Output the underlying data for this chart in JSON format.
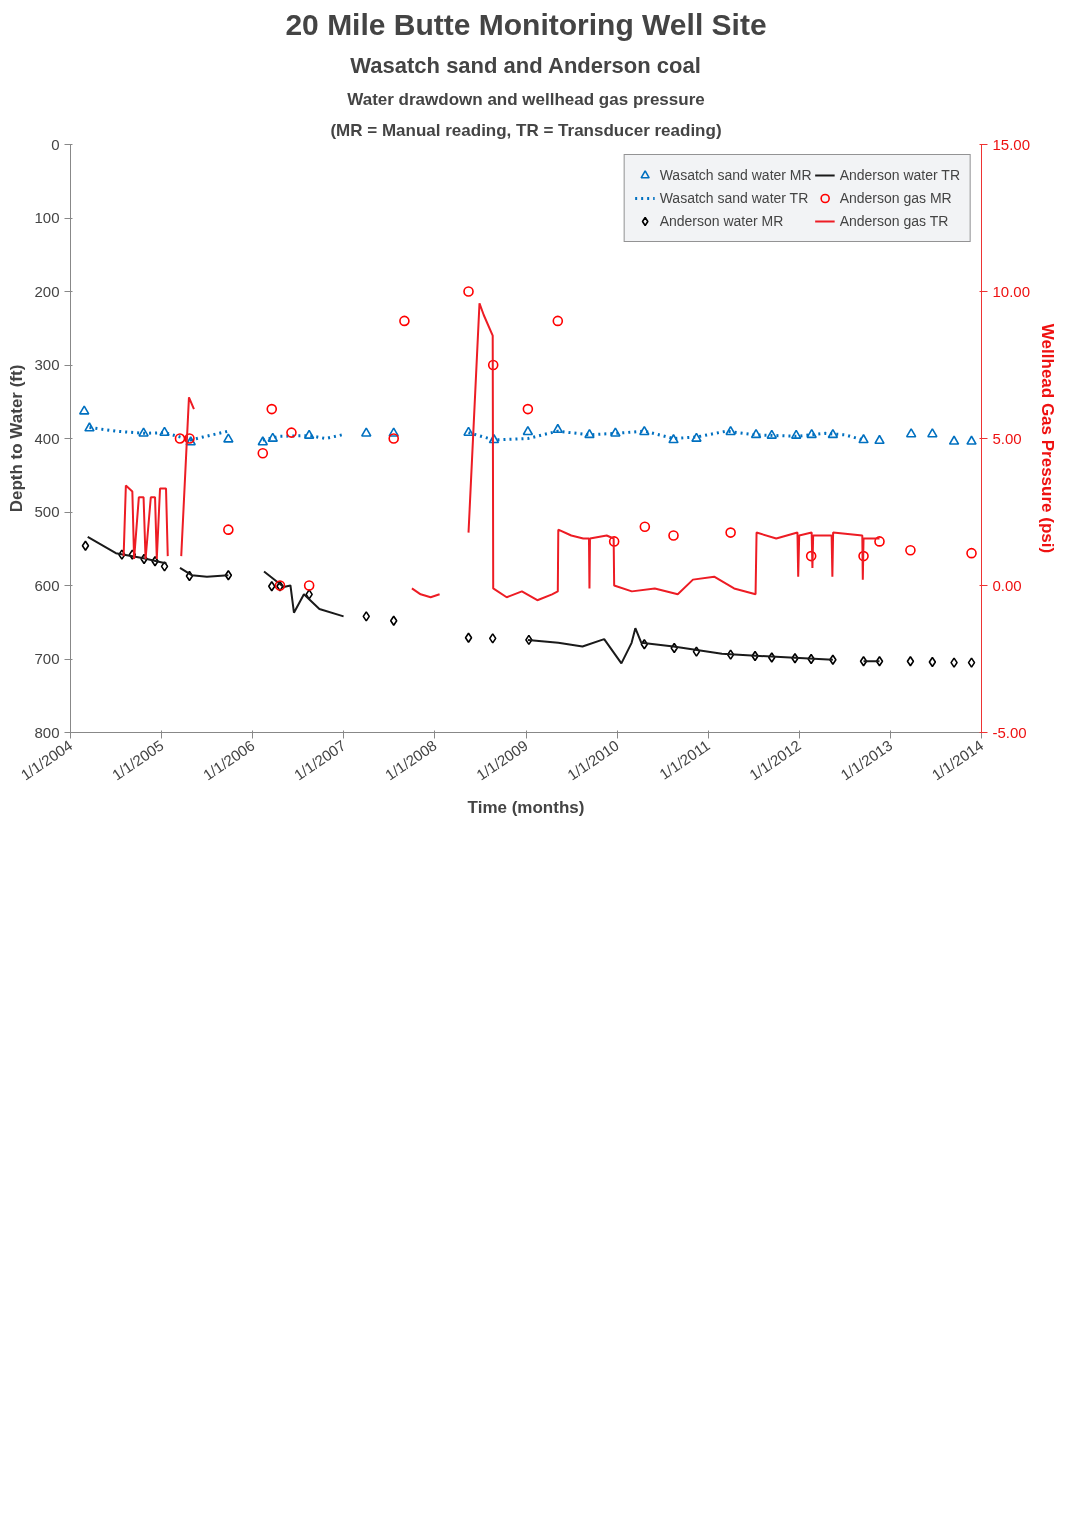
{
  "chart_data": {
    "type": "line",
    "title": "20 Mile Butte Monitoring Well Site",
    "subtitle": "Wasatch sand and Anderson coal",
    "annotations": [
      "Water drawdown and wellhead gas pressure",
      "(MR = Manual reading, TR = Transducer reading)"
    ],
    "xlabel": "Time (months)",
    "ylabel": "Depth to Water (ft)",
    "y2label": "Wellhead Gas Pressure (psi)",
    "xlim": [
      "2004-01-01",
      "2014-01-01"
    ],
    "xticks": [
      {
        "value": "2004-01-01",
        "label": "1/1/2004"
      },
      {
        "value": "2005-01-01",
        "label": "1/1/2005"
      },
      {
        "value": "2006-01-01",
        "label": "1/1/2006"
      },
      {
        "value": "2007-01-01",
        "label": "1/1/2007"
      },
      {
        "value": "2008-01-01",
        "label": "1/1/2008"
      },
      {
        "value": "2009-01-01",
        "label": "1/1/2009"
      },
      {
        "value": "2010-01-01",
        "label": "1/1/2010"
      },
      {
        "value": "2011-01-01",
        "label": "1/1/2011"
      },
      {
        "value": "2012-01-01",
        "label": "1/1/2012"
      },
      {
        "value": "2013-01-01",
        "label": "1/1/2013"
      },
      {
        "value": "2014-01-01",
        "label": "1/1/2014"
      }
    ],
    "ylim": [
      800,
      0
    ],
    "yticks": [
      0,
      100,
      200,
      300,
      400,
      500,
      600,
      700,
      800
    ],
    "y2lim": [
      -5,
      15
    ],
    "y2ticks": [
      {
        "value": -5,
        "label": "-5.00"
      },
      {
        "value": 0,
        "label": "0.00"
      },
      {
        "value": 5,
        "label": "5.00"
      },
      {
        "value": 10,
        "label": "10.00"
      },
      {
        "value": 15,
        "label": "15.00"
      }
    ],
    "legend": "top right",
    "series": [
      {
        "name": "Wasatch sand water MR",
        "type": "scatter",
        "marker": "triangle",
        "color": "#0070c0",
        "x": [
          "2004-02-25",
          "2004-03-17",
          "2004-10-20",
          "2005-01-12",
          "2005-04-27",
          "2005-09-25",
          "2006-02-10",
          "2006-03-22",
          "2006-08-15",
          "2007-04-01",
          "2007-07-20",
          "2008-05-15",
          "2008-08-25",
          "2009-01-08",
          "2009-05-08",
          "2009-09-12",
          "2009-12-25",
          "2010-04-20",
          "2010-08-15",
          "2010-11-15",
          "2011-04-01",
          "2011-07-12",
          "2011-09-13",
          "2011-12-20",
          "2012-02-20",
          "2012-05-15",
          "2012-09-15",
          "2012-11-18",
          "2013-03-25",
          "2013-06-18",
          "2013-09-13",
          "2013-11-22"
        ],
        "values": [
          363,
          386,
          393,
          392,
          405,
          401,
          405,
          400,
          396,
          393,
          393,
          392,
          402,
          391,
          388,
          395,
          393,
          391,
          402,
          400,
          391,
          395,
          396,
          396,
          395,
          395,
          402,
          403,
          394,
          394,
          404,
          404
        ]
      },
      {
        "name": "Wasatch sand water TR",
        "line_style": "dotted",
        "marker": "none",
        "color": "#0070c0",
        "x": [
          "2004-03-17",
          "2004-07-01",
          "2004-10-20",
          "2005-01-12",
          "2005-04-27",
          "2005-06-15",
          "2005-09-25",
          "2005-12-01",
          "2006-02-10",
          "2006-04-20",
          "2006-08-15",
          "2006-10-20",
          "2006-12-25",
          "2007-07-01",
          "2008-05-15",
          "2008-08-25",
          "2009-01-08",
          "2009-05-08",
          "2009-09-12",
          "2009-12-25",
          "2010-04-20",
          "2010-08-15",
          "2010-11-15",
          "2011-03-15",
          "2011-07-12",
          "2011-12-20",
          "2012-04-15",
          "2012-07-01",
          "2012-09-15"
        ],
        "values": [
          385,
          390,
          393,
          392,
          402,
          398,
          390,
          null,
          402,
          397,
          396,
          400,
          395,
          null,
          392,
          402,
          400,
          390,
          395,
          393,
          390,
          400,
          398,
          390,
          395,
          397,
          393,
          395,
          402
        ]
      },
      {
        "name": "Anderson water MR",
        "type": "scatter",
        "marker": "diamond",
        "color": "#000000",
        "x": [
          "2004-03-01",
          "2004-07-25",
          "2004-09-05",
          "2004-10-22",
          "2004-12-05",
          "2005-01-12",
          "2005-04-22",
          "2005-09-25",
          "2006-03-18",
          "2006-04-20",
          "2006-08-15",
          "2007-04-01",
          "2007-07-20",
          "2008-05-15",
          "2008-08-20",
          "2009-01-12",
          "2010-04-20",
          "2010-08-18",
          "2010-11-15",
          "2011-04-01",
          "2011-07-08",
          "2011-09-13",
          "2011-12-15",
          "2012-02-18",
          "2012-05-15",
          "2012-09-15",
          "2012-11-18",
          "2013-03-22",
          "2013-06-18",
          "2013-09-13",
          "2013-11-22"
        ],
        "values": [
          546,
          558,
          558,
          564,
          567,
          574,
          587,
          586,
          601,
          601,
          612,
          642,
          648,
          671,
          672,
          674,
          680,
          685,
          690,
          694,
          696,
          698,
          699,
          700,
          701,
          703,
          703,
          703,
          704,
          705,
          705
        ]
      },
      {
        "name": "Anderson water TR",
        "line_style": "solid",
        "marker": "none",
        "color": "#1a1a1a",
        "x": [
          "2004-03-10",
          "2004-07-01",
          "2004-10-20",
          "2005-01-20",
          "2005-02-20",
          "2005-03-15",
          "2005-05-01",
          "2005-07-01",
          "2005-09-25",
          "2006-01-01",
          "2006-02-15",
          "2006-05-05",
          "2006-06-01",
          "2006-06-15",
          "2006-07-25",
          "2006-09-25",
          "2006-12-31",
          "2008-01-01",
          "2009-01-08",
          "2009-05-10",
          "2009-08-15",
          "2009-11-10",
          "2010-01-18",
          "2010-02-28",
          "2010-03-15",
          "2010-04-08",
          "2010-08-15",
          "2011-02-25",
          "2011-11-25",
          "2012-05-15",
          "2012-07-15",
          "2012-09-15",
          "2012-11-18"
        ],
        "values": [
          534,
          556,
          563,
          570,
          null,
          576,
          586,
          588,
          586,
          null,
          581,
          602,
          600,
          637,
          612,
          632,
          642,
          null,
          674,
          678,
          683,
          673,
          706,
          678,
          658,
          678,
          683,
          693,
          698,
          701,
          null,
          703,
          703
        ]
      },
      {
        "name": "Anderson gas MR",
        "type": "scatter",
        "marker": "circle",
        "axis": "y2",
        "color": "#ff0000",
        "x": [
          "2005-03-15",
          "2005-04-22",
          "2005-09-25",
          "2006-02-10",
          "2006-03-18",
          "2006-04-20",
          "2006-06-05",
          "2006-08-15",
          "2007-07-20",
          "2007-09-01",
          "2008-05-15",
          "2008-08-22",
          "2009-01-08",
          "2009-05-08",
          "2009-12-20",
          "2010-04-22",
          "2010-08-15",
          "2011-04-01",
          "2012-02-18",
          "2012-09-15",
          "2012-11-18",
          "2013-03-22",
          "2013-11-22"
        ],
        "values": [
          5.0,
          5.0,
          1.9,
          4.5,
          6.0,
          0.0,
          5.2,
          0.0,
          5.0,
          9.0,
          10.0,
          7.5,
          6.0,
          9.0,
          1.5,
          2.0,
          1.7,
          1.8,
          1.0,
          1.0,
          1.5,
          1.2,
          1.1
        ]
      },
      {
        "name": "Anderson gas TR",
        "line_style": "solid",
        "marker": "none",
        "axis": "y2",
        "color": "#ed1c24",
        "x": [
          "2004-08-01",
          "2004-08-10",
          "2004-09-05",
          "2004-09-12",
          "2004-10-01",
          "2004-10-20",
          "2004-10-28",
          "2004-11-18",
          "2004-12-05",
          "2004-12-12",
          "2004-12-25",
          "2005-01-18",
          "2005-01-25",
          "2005-02-15",
          "2005-03-20",
          "2005-04-20",
          "2005-05-10",
          "2005-07-01",
          "2007-10-01",
          "2007-11-05",
          "2007-12-15",
          "2008-01-20",
          "2008-03-01",
          "2008-05-15",
          "2008-06-28",
          "2008-07-15",
          "2008-08-20",
          "2008-08-22",
          "2008-10-15",
          "2008-12-15",
          "2009-02-15",
          "2009-04-15",
          "2009-05-08",
          "2009-05-10",
          "2009-07-01",
          "2009-08-18",
          "2009-09-10",
          "2009-09-12",
          "2009-09-14",
          "2009-11-20",
          "2009-12-18",
          "2009-12-20",
          "2010-03-01",
          "2010-06-01",
          "2010-09-01",
          "2010-11-01",
          "2011-01-25",
          "2011-04-15",
          "2011-07-10",
          "2011-07-14",
          "2011-10-01",
          "2011-12-25",
          "2011-12-28",
          "2012-01-01",
          "2012-02-20",
          "2012-02-23",
          "2012-02-26",
          "2012-05-10",
          "2012-05-13",
          "2012-05-16",
          "2012-09-10",
          "2012-09-12",
          "2012-09-15",
          "2012-11-18"
        ],
        "values": [
          1.0,
          3.4,
          3.2,
          0.9,
          3.0,
          3.0,
          0.9,
          3.0,
          3.0,
          0.9,
          3.3,
          3.3,
          1.0,
          null,
          1.0,
          6.4,
          6.0,
          null,
          -0.1,
          -0.3,
          -0.4,
          -0.3,
          null,
          1.8,
          9.6,
          9.2,
          8.5,
          -0.1,
          -0.4,
          -0.2,
          -0.5,
          -0.3,
          -0.2,
          1.9,
          1.7,
          1.6,
          1.6,
          -0.1,
          1.6,
          1.7,
          1.6,
          0.0,
          -0.2,
          -0.1,
          -0.3,
          0.2,
          0.3,
          -0.1,
          -0.3,
          1.8,
          1.6,
          1.8,
          0.3,
          1.7,
          1.8,
          0.6,
          1.7,
          1.7,
          0.3,
          1.8,
          1.7,
          0.2,
          1.6,
          1.6
        ]
      }
    ]
  }
}
